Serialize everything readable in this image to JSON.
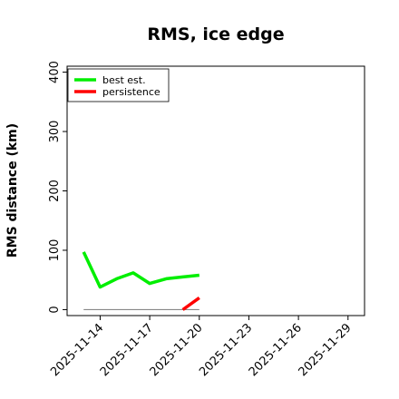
{
  "chart_data": {
    "type": "line",
    "title": "RMS, ice edge",
    "xlabel": "",
    "ylabel": "RMS distance (km)",
    "ylim": [
      -10,
      410
    ],
    "xlim": [
      "2025-11-12",
      "2025-11-30"
    ],
    "yticks": [
      0,
      100,
      200,
      300,
      400
    ],
    "xticks": [
      "2025-11-14",
      "2025-11-17",
      "2025-11-20",
      "2025-11-23",
      "2025-11-26",
      "2025-11-29"
    ],
    "grid": false,
    "legend_position": "top-left",
    "series": [
      {
        "name": "best est.",
        "color": "#00ee00",
        "x": [
          "2025-11-13",
          "2025-11-14",
          "2025-11-15",
          "2025-11-16",
          "2025-11-17",
          "2025-11-18",
          "2025-11-19",
          "2025-11-20"
        ],
        "y": [
          97,
          38,
          52,
          62,
          44,
          52,
          55,
          58
        ]
      },
      {
        "name": "persistence",
        "color": "#ff0000",
        "x": [
          "2025-11-19",
          "2025-11-20"
        ],
        "y": [
          0,
          20
        ]
      }
    ],
    "reference_line": {
      "color": "#888888",
      "x": [
        "2025-11-13",
        "2025-11-20"
      ],
      "y": [
        0,
        0
      ]
    }
  }
}
